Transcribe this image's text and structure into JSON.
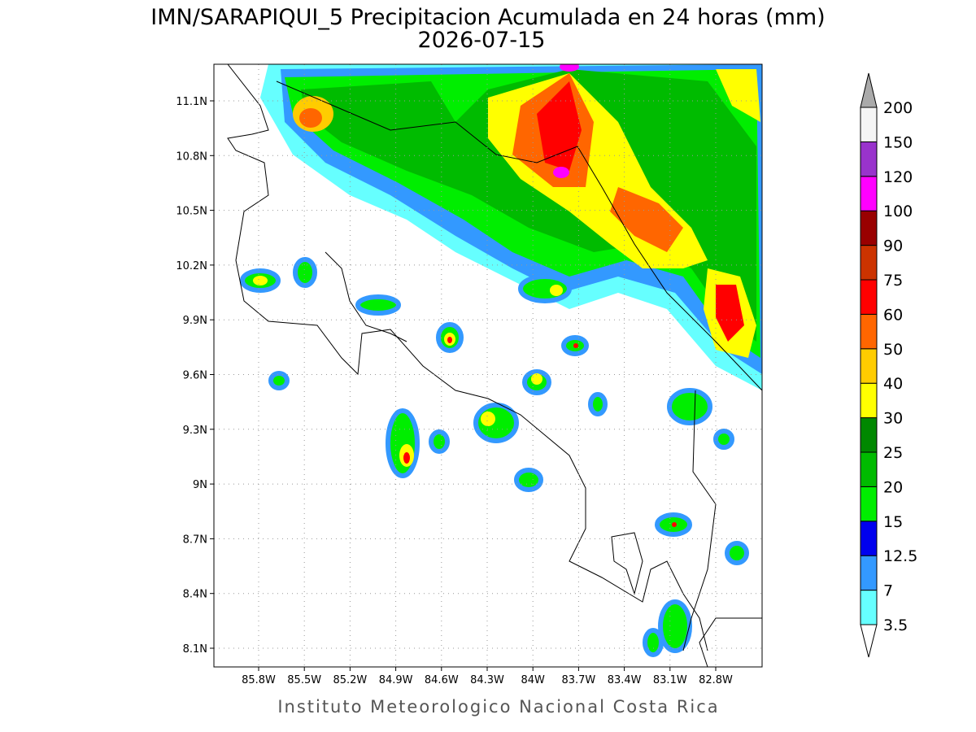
{
  "title": "IMN/SARAPIQUI_5 Precipitacion Acumulada en 24 horas (mm)",
  "subtitle": "2026-07-15",
  "map": {
    "xticks": [
      "85.8W",
      "85.5W",
      "85.2W",
      "84.9W",
      "84.6W",
      "84.3W",
      "84W",
      "83.7W",
      "83.4W",
      "83.1W",
      "82.8W"
    ],
    "yticks": [
      "11.1N",
      "10.8N",
      "10.5N",
      "10.2N",
      "9.9N",
      "9.6N",
      "9.3N",
      "9N",
      "8.7N",
      "8.4N",
      "8.1N"
    ]
  },
  "colorbar": {
    "levels": [
      3.5,
      7,
      12.5,
      15,
      20,
      25,
      30,
      40,
      50,
      60,
      75,
      90,
      100,
      120,
      150,
      200
    ],
    "colors": [
      "#66ffff",
      "#3399ff",
      "#0000ee",
      "#00ee00",
      "#00bb00",
      "#008800",
      "#ffff00",
      "#ffcc00",
      "#ff6600",
      "#ff0000",
      "#cc3300",
      "#990000",
      "#ff00ff",
      "#9933cc",
      "#f5f5f5"
    ],
    "under_color": "#ffffff",
    "over_color": "#aaaaaa"
  },
  "footer": "Instituto Meteorologico Nacional Costa Rica"
}
